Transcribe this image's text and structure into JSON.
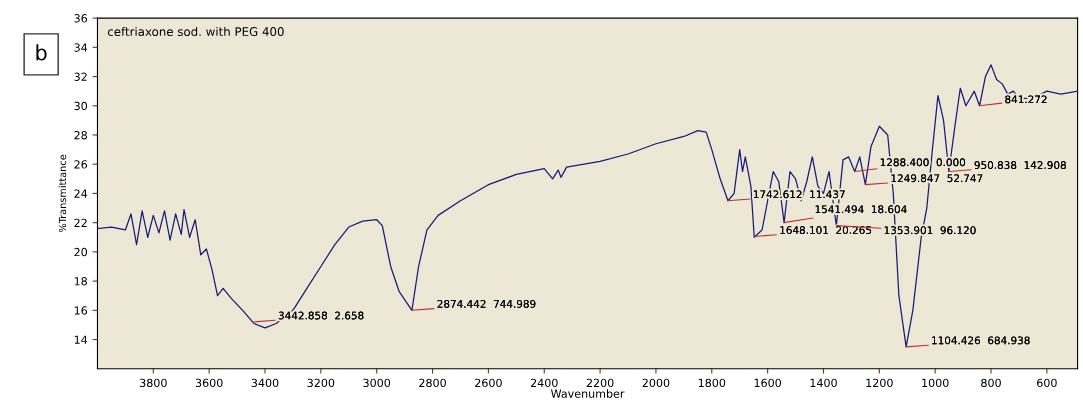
{
  "chart_data": {
    "type": "line",
    "title": "ceftriaxone sod. with PEG 400",
    "xlabel": "Wavenumber",
    "ylabel": "%Transmittance",
    "x": [
      4000,
      3950,
      3900,
      3880,
      3860,
      3840,
      3820,
      3800,
      3780,
      3760,
      3740,
      3720,
      3700,
      3690,
      3670,
      3650,
      3630,
      3610,
      3590,
      3570,
      3550,
      3520,
      3480,
      3440,
      3400,
      3360,
      3300,
      3250,
      3200,
      3150,
      3100,
      3050,
      3000,
      2980,
      2950,
      2920,
      2874,
      2850,
      2820,
      2780,
      2700,
      2600,
      2500,
      2400,
      2370,
      2350,
      2340,
      2320,
      2200,
      2100,
      2000,
      1900,
      1850,
      1820,
      1800,
      1770,
      1742,
      1720,
      1700,
      1690,
      1680,
      1660,
      1648,
      1620,
      1600,
      1580,
      1560,
      1541,
      1520,
      1500,
      1480,
      1460,
      1440,
      1420,
      1400,
      1380,
      1354,
      1330,
      1310,
      1288,
      1270,
      1250,
      1230,
      1200,
      1170,
      1150,
      1130,
      1104,
      1080,
      1050,
      1030,
      1010,
      990,
      970,
      951,
      930,
      910,
      890,
      860,
      841,
      820,
      800,
      780,
      760,
      740,
      720,
      700,
      650,
      600,
      550,
      490
    ],
    "series": [
      {
        "color": "#1a1a7a",
        "values": [
          21.6,
          21.7,
          21.5,
          22.6,
          20.5,
          22.8,
          21.0,
          22.5,
          21.3,
          22.8,
          20.8,
          22.6,
          21.2,
          22.9,
          21.0,
          22.2,
          19.8,
          20.2,
          18.8,
          17.0,
          17.5,
          16.8,
          16.0,
          15.1,
          14.8,
          15.1,
          16.0,
          17.5,
          19.0,
          20.5,
          21.7,
          22.1,
          22.2,
          21.8,
          19.0,
          17.3,
          16.0,
          19.0,
          21.5,
          22.5,
          23.5,
          24.6,
          25.3,
          25.7,
          25.0,
          25.6,
          25.1,
          25.8,
          26.2,
          26.7,
          27.4,
          27.9,
          28.3,
          28.2,
          27.0,
          25.0,
          23.5,
          24.0,
          27.0,
          25.5,
          26.5,
          24.5,
          21.0,
          21.5,
          23.5,
          25.5,
          24.8,
          22.0,
          25.5,
          25.0,
          23.5,
          24.8,
          26.5,
          24.5,
          24.0,
          25.5,
          21.8,
          26.3,
          26.5,
          25.5,
          26.5,
          24.6,
          27.2,
          28.6,
          28.0,
          24.0,
          17.0,
          13.5,
          16.0,
          21.0,
          23.0,
          27.0,
          30.7,
          29.0,
          25.5,
          28.5,
          31.2,
          30.0,
          31.0,
          30.0,
          32.0,
          32.8,
          31.8,
          31.5,
          30.8,
          31.0,
          30.5,
          30.5,
          31.0,
          30.8,
          31.0
        ]
      }
    ],
    "xlim": [
      4000,
      490
    ],
    "ylim": [
      12,
      36
    ],
    "xticks": [
      3800,
      3600,
      3400,
      3200,
      3000,
      2800,
      2600,
      2400,
      2200,
      2000,
      1800,
      1600,
      1400,
      1200,
      1000,
      800,
      600
    ],
    "yticks": [
      14,
      16,
      18,
      20,
      22,
      24,
      26,
      28,
      30,
      32,
      34,
      36
    ],
    "grid": false,
    "legend": false,
    "annotations": [
      "b",
      {
        "text": "3442.858  2.658",
        "x": 3442.858,
        "y": 15.2
      },
      {
        "text": "2874.442  744.989",
        "x": 2874.442,
        "y": 16.0
      },
      {
        "text": "1742.612  11.437",
        "x": 1742.612,
        "y": 23.5
      },
      {
        "text": "1648.101  20.265",
        "x": 1648.101,
        "y": 21.05
      },
      {
        "text": "1541.494  18.604",
        "x": 1541.494,
        "y": 22.0
      },
      {
        "text": "1353.901  96.120",
        "x": 1353.901,
        "y": 21.8
      },
      {
        "text": "1288.400  0.000",
        "x": 1288.4,
        "y": 25.5
      },
      {
        "text": "1249.847  52.747",
        "x": 1249.847,
        "y": 24.6
      },
      {
        "text": "1104.426  684.938",
        "x": 1104.426,
        "y": 13.5
      },
      {
        "text": "950.838  142.908",
        "x": 950.838,
        "y": 25.5
      },
      {
        "text": "841.272",
        "x": 841.272,
        "y": 30.0
      }
    ]
  }
}
